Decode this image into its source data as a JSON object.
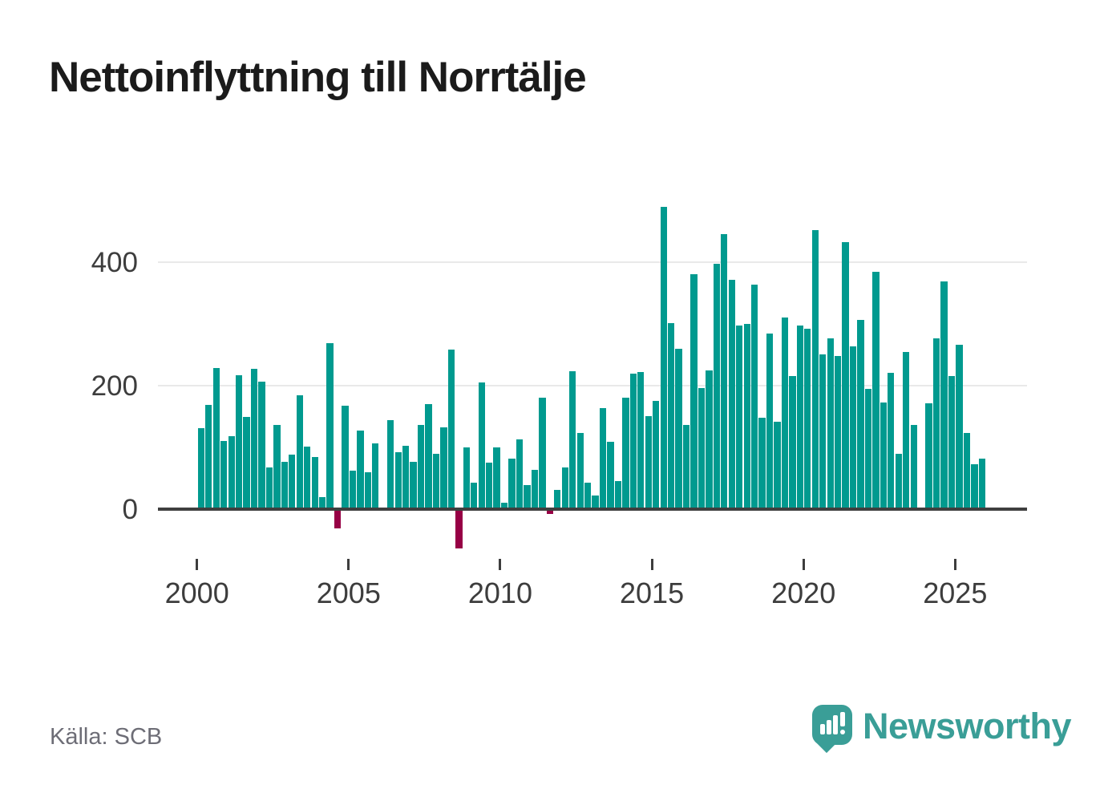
{
  "title": "Nettoinflyttning till Norrtälje",
  "source": "Källa: SCB",
  "branding": {
    "wordmark": "Newsworthy",
    "logo_icon": "newsworthy-speech-bubble-chart-icon"
  },
  "colors": {
    "positive_bar": "#009a8f",
    "negative_bar": "#970045",
    "axis": "#3f3f3f",
    "gridline": "#e9e9e9",
    "title_text": "#1b1b1b",
    "tick_text": "#3d3d3d",
    "source_text": "#6d6d76",
    "brand_teal": "#3a9e97",
    "background": "#ffffff"
  },
  "chart_data": {
    "type": "bar",
    "title": "Nettoinflyttning till Norrtälje",
    "xlabel": "",
    "ylabel": "",
    "frequency": "quarterly",
    "grid": "horizontal",
    "legend": "none",
    "ylim": [
      -75,
      510
    ],
    "y_ticks": [
      0,
      200,
      400
    ],
    "y_tick_labels": [
      "0",
      "200",
      "400"
    ],
    "x_ticks": [
      2000,
      2005,
      2010,
      2015,
      2020,
      2025
    ],
    "x_tick_labels": [
      "2000",
      "2005",
      "2010",
      "2015",
      "2020",
      "2025"
    ],
    "categories": [
      "2000 Q1",
      "2000 Q2",
      "2000 Q3",
      "2000 Q4",
      "2001 Q1",
      "2001 Q2",
      "2001 Q3",
      "2001 Q4",
      "2002 Q1",
      "2002 Q2",
      "2002 Q3",
      "2002 Q4",
      "2003 Q1",
      "2003 Q2",
      "2003 Q3",
      "2003 Q4",
      "2004 Q1",
      "2004 Q2",
      "2004 Q3",
      "2004 Q4",
      "2005 Q1",
      "2005 Q2",
      "2005 Q3",
      "2005 Q4",
      "2006 Q1",
      "2006 Q2",
      "2006 Q3",
      "2006 Q4",
      "2007 Q1",
      "2007 Q2",
      "2007 Q3",
      "2007 Q4",
      "2008 Q1",
      "2008 Q2",
      "2008 Q3",
      "2008 Q4",
      "2009 Q1",
      "2009 Q2",
      "2009 Q3",
      "2009 Q4",
      "2010 Q1",
      "2010 Q2",
      "2010 Q3",
      "2010 Q4",
      "2011 Q1",
      "2011 Q2",
      "2011 Q3",
      "2011 Q4",
      "2012 Q1",
      "2012 Q2",
      "2012 Q3",
      "2012 Q4",
      "2013 Q1",
      "2013 Q2",
      "2013 Q3",
      "2013 Q4",
      "2014 Q1",
      "2014 Q2",
      "2014 Q3",
      "2014 Q4",
      "2015 Q1",
      "2015 Q2",
      "2015 Q3",
      "2015 Q4",
      "2016 Q1",
      "2016 Q2",
      "2016 Q3",
      "2016 Q4",
      "2017 Q1",
      "2017 Q2",
      "2017 Q3",
      "2017 Q4",
      "2018 Q1",
      "2018 Q2",
      "2018 Q3",
      "2018 Q4",
      "2019 Q1",
      "2019 Q2",
      "2019 Q3",
      "2019 Q4",
      "2020 Q1",
      "2020 Q2",
      "2020 Q3",
      "2020 Q4",
      "2021 Q1",
      "2021 Q2",
      "2021 Q3",
      "2021 Q4",
      "2022 Q1",
      "2022 Q2",
      "2022 Q3",
      "2022 Q4",
      "2023 Q1",
      "2023 Q2",
      "2023 Q3",
      "2023 Q4",
      "2024 Q1",
      "2024 Q2",
      "2024 Q3",
      "2024 Q4",
      "2025 Q1",
      "2025 Q2",
      "2025 Q3",
      "2025 Q4"
    ],
    "values": [
      131,
      169,
      228,
      110,
      118,
      217,
      150,
      227,
      206,
      68,
      137,
      77,
      88,
      184,
      101,
      84,
      19,
      269,
      -31,
      167,
      62,
      127,
      60,
      106,
      0,
      144,
      92,
      102,
      76,
      136,
      170,
      90,
      133,
      258,
      -63,
      100,
      43,
      205,
      75,
      100,
      10,
      82,
      113,
      39,
      64,
      181,
      -8,
      31,
      67,
      223,
      123,
      43,
      22,
      164,
      109,
      45,
      180,
      220,
      222,
      151,
      175,
      489,
      301,
      260,
      137,
      380,
      196,
      225,
      397,
      445,
      371,
      297,
      300,
      363,
      148,
      284,
      141,
      311,
      216,
      297,
      292,
      452,
      251,
      276,
      248,
      432,
      263,
      307,
      195,
      384,
      173,
      221,
      90,
      254,
      137,
      0,
      172,
      277,
      369,
      216,
      266,
      123,
      73,
      82
    ]
  }
}
